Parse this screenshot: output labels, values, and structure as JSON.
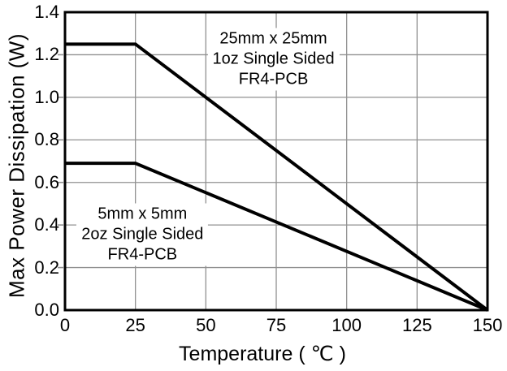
{
  "figure": {
    "background": "#ffffff",
    "frame_color": "#000000",
    "grid_color": "#909090",
    "series_color": "#000000"
  },
  "chart_data": {
    "type": "line",
    "title": "",
    "xlabel": "Temperature ( ℃ )",
    "ylabel": "Max Power Dissipation (W)",
    "xlim": [
      0,
      150
    ],
    "ylim": [
      0,
      1.4
    ],
    "grid": "both",
    "legend": "none (inline annotations)",
    "x_ticks": [
      0,
      25,
      50,
      75,
      100,
      125,
      150
    ],
    "x_tick_labels": [
      "0",
      "25",
      "50",
      "75",
      "100",
      "125",
      "150"
    ],
    "y_ticks": [
      0.0,
      0.2,
      0.4,
      0.6,
      0.8,
      1.0,
      1.2,
      1.4
    ],
    "y_tick_labels": [
      "0.0",
      "0.2",
      "0.4",
      "0.6",
      "0.8",
      "1.0",
      "1.2",
      "1.4"
    ],
    "series": [
      {
        "name": "25mm x 25mm 1oz Single Sided FR4-PCB",
        "points": [
          [
            0,
            1.25
          ],
          [
            25,
            1.25
          ],
          [
            150,
            0
          ]
        ]
      },
      {
        "name": "5mm x 5mm 2oz Single Sided FR4-PCB",
        "points": [
          [
            0,
            0.69
          ],
          [
            25,
            0.69
          ],
          [
            150,
            0
          ]
        ]
      }
    ],
    "annotations": [
      {
        "lines": [
          "25mm x 25mm",
          "1oz Single Sided",
          "FR4-PCB"
        ],
        "center_data": [
          74,
          1.18
        ]
      },
      {
        "lines": [
          "5mm x 5mm",
          "2oz Single Sided",
          "FR4-PCB"
        ],
        "center_data": [
          27.5,
          0.355
        ]
      }
    ]
  }
}
